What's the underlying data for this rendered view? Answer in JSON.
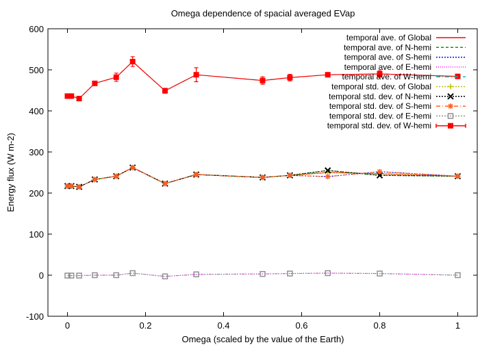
{
  "chart_data": {
    "type": "line",
    "title": "Omega dependence of spacial averaged EVap",
    "xlabel": "Omega (scaled by the value of the Earth)",
    "ylabel": "Energy flux (W m-2)",
    "xlim": [
      -0.05,
      1.05
    ],
    "ylim": [
      -100,
      600
    ],
    "x_ticks": [
      0,
      0.2,
      0.4,
      0.6,
      0.8,
      1
    ],
    "x_tick_labels": [
      "0",
      "0.2",
      "0.4",
      "0.6",
      "0.8",
      "1"
    ],
    "y_ticks": [
      -100,
      0,
      100,
      200,
      300,
      400,
      500,
      600
    ],
    "y_tick_labels": [
      "-100",
      "0",
      "100",
      "200",
      "300",
      "400",
      "500",
      "600"
    ],
    "grid": false,
    "legend_position": "top-right",
    "x": [
      0,
      0.01,
      0.03,
      0.07,
      0.125,
      0.167,
      0.25,
      0.33,
      0.5,
      0.57,
      0.667,
      0.8,
      1.0
    ],
    "series": [
      {
        "name": "temporal ave. of Global",
        "color": "#ff0000",
        "dash": "solid",
        "marker": "none",
        "values": [
          217,
          217,
          215,
          233,
          241,
          262,
          223,
          245,
          238,
          243,
          250,
          247,
          241
        ]
      },
      {
        "name": "temporal ave. of N-hemi",
        "color": "#00a000",
        "dash": "dashed",
        "marker": "none",
        "values": [
          217,
          217,
          215,
          233,
          241,
          262,
          223,
          245,
          238,
          243,
          255,
          243,
          241
        ]
      },
      {
        "name": "temporal ave. of S-hemi",
        "color": "#0000ff",
        "dash": "dotted",
        "marker": "none",
        "values": [
          217,
          217,
          215,
          233,
          241,
          262,
          223,
          245,
          238,
          243,
          240,
          252,
          241
        ]
      },
      {
        "name": "temporal ave. of E-hemi",
        "color": "#ff00ff",
        "dash": "finedot",
        "marker": "none",
        "values": [
          -1,
          -1,
          -1,
          0,
          0,
          5,
          -3,
          2,
          3,
          4,
          5,
          4,
          0
        ]
      },
      {
        "name": "temporal ave. of W-hemi",
        "color": "#00c0c0",
        "dash": "dashdot",
        "marker": "none",
        "values": [
          436,
          436,
          430,
          467,
          482,
          520,
          449,
          488,
          474,
          481,
          488,
          490,
          484
        ]
      },
      {
        "name": "temporal std. dev. of Global",
        "color": "#c0c000",
        "dash": "dotted",
        "marker": "plus",
        "values": [
          217,
          217,
          215,
          233,
          241,
          262,
          223,
          245,
          238,
          243,
          250,
          247,
          241
        ]
      },
      {
        "name": "temporal std. dev. of N-hemi",
        "color": "#000000",
        "dash": "dotted",
        "marker": "cross",
        "values": [
          217,
          217,
          215,
          233,
          241,
          262,
          223,
          245,
          238,
          243,
          255,
          243,
          241
        ]
      },
      {
        "name": "temporal std. dev. of S-hemi",
        "color": "#ff6020",
        "dash": "dashdot",
        "marker": "star",
        "values": [
          217,
          217,
          215,
          233,
          241,
          262,
          223,
          245,
          238,
          243,
          240,
          252,
          241
        ]
      },
      {
        "name": "temporal std. dev. of E-hemi",
        "color": "#909090",
        "dash": "dotted",
        "marker": "square-open",
        "values": [
          -1,
          -1,
          -1,
          0,
          0,
          5,
          -3,
          2,
          3,
          4,
          5,
          4,
          0
        ]
      },
      {
        "name": "temporal std. dev. of W-hemi",
        "color": "#ff0000",
        "dash": "solid",
        "marker": "square-filled",
        "values": [
          436,
          436,
          430,
          467,
          482,
          520,
          449,
          488,
          474,
          481,
          488,
          490,
          484
        ],
        "errors": [
          2,
          2,
          2,
          4,
          10,
          12,
          6,
          17,
          9,
          8,
          5,
          8,
          2
        ]
      }
    ]
  }
}
